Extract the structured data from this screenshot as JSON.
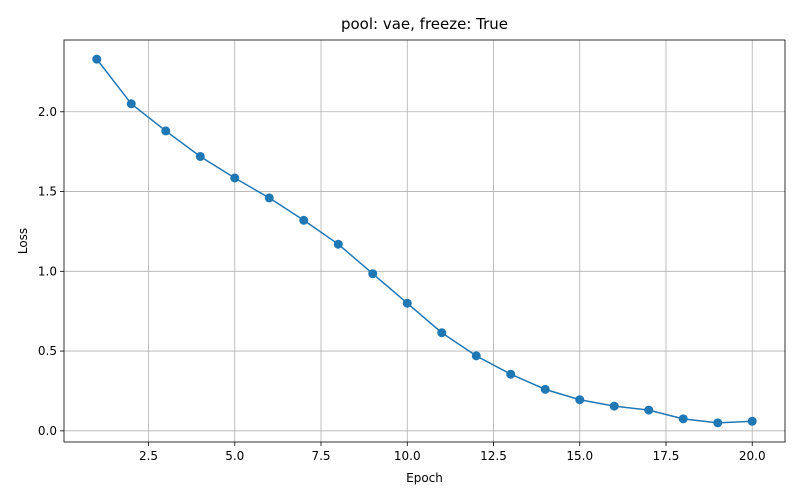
{
  "chart_data": {
    "type": "line",
    "title": "pool: vae, freeze: True",
    "xlabel": "Epoch",
    "ylabel": "Loss",
    "xlim": [
      0.05,
      20.95
    ],
    "ylim": [
      -0.07,
      2.45
    ],
    "xticks": [
      2.5,
      5.0,
      7.5,
      10.0,
      12.5,
      15.0,
      17.5,
      20.0
    ],
    "xtick_labels": [
      "2.5",
      "5.0",
      "7.5",
      "10.0",
      "12.5",
      "15.0",
      "17.5",
      "20.0"
    ],
    "yticks": [
      0.0,
      0.5,
      1.0,
      1.5,
      2.0
    ],
    "ytick_labels": [
      "0.0",
      "0.5",
      "1.0",
      "1.5",
      "2.0"
    ],
    "grid": true,
    "marker": "circle",
    "colors": {
      "series": "#1f77b4"
    },
    "series": [
      {
        "x": [
          1,
          2,
          3,
          4,
          5,
          6,
          7,
          8,
          9,
          10,
          11,
          12,
          13,
          14,
          15,
          16,
          17,
          18,
          19,
          20
        ],
        "values": [
          2.33,
          2.05,
          1.88,
          1.72,
          1.585,
          1.46,
          1.32,
          1.17,
          0.985,
          0.8,
          0.615,
          0.47,
          0.355,
          0.26,
          0.195,
          0.155,
          0.13,
          0.075,
          0.05,
          0.06
        ]
      }
    ]
  }
}
